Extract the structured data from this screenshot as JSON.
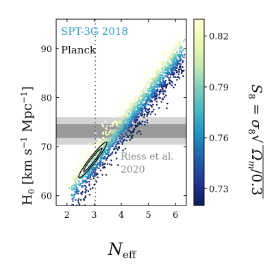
{
  "chart_data": {
    "type": "scatter",
    "xlabel": "N_eff",
    "ylabel": "H0 [km s^-1 Mpc^-1]",
    "xlim": [
      1.6,
      6.4
    ],
    "ylim": [
      58,
      96
    ],
    "x_ticks": [
      2,
      3,
      4,
      5,
      6
    ],
    "y_ticks": [
      60,
      70,
      80,
      90
    ],
    "legend": [
      {
        "name": "SPT-3G 2018",
        "color": "#2a9cc8"
      },
      {
        "name": "Planck",
        "color": "#111111"
      }
    ],
    "reference_line": {
      "x": 3.046,
      "style": "dotted",
      "color": "#777777"
    },
    "riess_band": {
      "label_line1": "Riess et al.",
      "label_line2": "2020",
      "center": 73.2,
      "inner": [
        71.8,
        74.6
      ],
      "outer": [
        70.4,
        76.0
      ],
      "inner_color": "#9a9a9a",
      "outer_color": "#d4d4d4"
    },
    "planck_contours": {
      "center": [
        2.95,
        67.3
      ],
      "major_axis_angle_deg": 52,
      "inner_semi_axes": [
        4.3,
        0.55
      ],
      "outer_semi_axes": [
        6.6,
        0.95
      ]
    },
    "scatter_trend": {
      "slope": 6.8,
      "intercept": 46.4,
      "x_range": [
        2.0,
        6.3
      ],
      "n_points": 1700
    },
    "colorbar": {
      "label": "S8 = σ8 √(Ωm/0.3)",
      "range": [
        0.72,
        0.83
      ],
      "ticks": [
        0.73,
        0.76,
        0.79,
        0.82
      ],
      "colormap": [
        "#081d58",
        "#253494",
        "#225ea8",
        "#1d91c0",
        "#41b6c4",
        "#7fcdbb",
        "#c7e9b4",
        "#edf8b1",
        "#ffffd9"
      ]
    }
  }
}
